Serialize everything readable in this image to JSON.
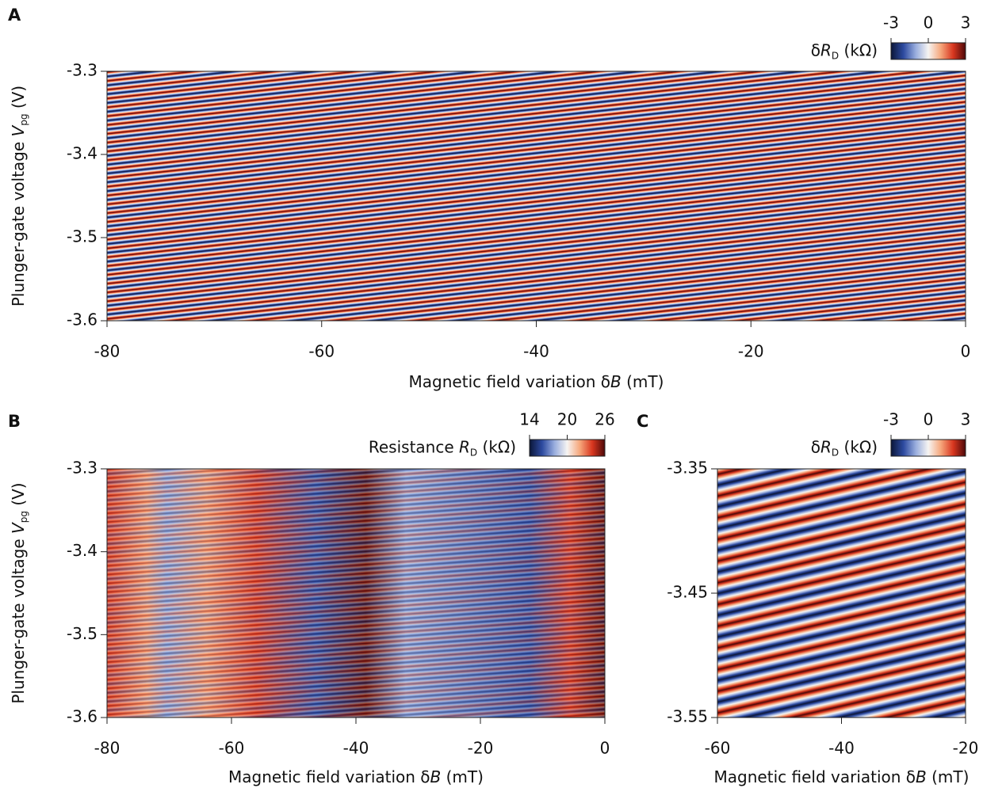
{
  "panels": [
    "A",
    "B",
    "C"
  ],
  "chart_data": [
    {
      "type": "heatmap",
      "xlabel": {
        "text": "Magnetic field variation δ",
        "italic": "B",
        "unit": " (mT)"
      },
      "ylabel": {
        "text": "Plunger-gate voltage ",
        "italic": "V",
        "sub": "pg",
        "unit": " (V)"
      },
      "xlim": [
        -80,
        0
      ],
      "xticks": [
        -80,
        -60,
        -40,
        -20,
        0
      ],
      "ylim": [
        -3.6,
        -3.3
      ],
      "yticks": [
        -3.3,
        -3.4,
        -3.5,
        -3.6
      ],
      "colorbar": {
        "label": {
          "text": "δ",
          "italic": "R",
          "sub": "D",
          "unit": " (kΩ)"
        },
        "clim": [
          -3,
          3
        ],
        "ticks": [
          -3,
          0,
          3
        ],
        "colors": [
          "#0b1638",
          "#2d4aa0",
          "#9aaede",
          "#f6f4f2",
          "#f6a77c",
          "#d8361f",
          "#4d0808"
        ]
      }
    },
    {
      "type": "heatmap",
      "xlabel": {
        "text": "Magnetic field variation δ",
        "italic": "B",
        "unit": " (mT)"
      },
      "ylabel": {
        "text": "Plunger-gate voltage ",
        "italic": "V",
        "sub": "pg",
        "unit": " (V)"
      },
      "xlim": [
        -80,
        0
      ],
      "xticks": [
        -80,
        -60,
        -40,
        -20,
        0
      ],
      "ylim": [
        -3.6,
        -3.3
      ],
      "yticks": [
        -3.3,
        -3.4,
        -3.5,
        -3.6
      ],
      "colorbar": {
        "label": {
          "text": "Resistance ",
          "italic": "R",
          "sub": "D",
          "unit": " (kΩ)"
        },
        "clim": [
          14,
          26
        ],
        "ticks": [
          14,
          20,
          26
        ],
        "colors": [
          "#0b1638",
          "#2d4aa0",
          "#9aaede",
          "#f6f4f2",
          "#f6a77c",
          "#d8361f",
          "#4d0808"
        ]
      }
    },
    {
      "type": "heatmap",
      "xlabel": {
        "text": "Magnetic field variation δ",
        "italic": "B",
        "unit": " (mT)"
      },
      "xlim": [
        -60,
        -20
      ],
      "xticks": [
        -60,
        -40,
        -20
      ],
      "ylim": [
        -3.55,
        -3.35
      ],
      "yticks": [
        -3.35,
        -3.45,
        -3.55
      ],
      "colorbar": {
        "label": {
          "text": "δ",
          "italic": "R",
          "sub": "D",
          "unit": " (kΩ)"
        },
        "clim": [
          -3,
          3
        ],
        "ticks": [
          -3,
          0,
          3
        ],
        "colors": [
          "#0b1638",
          "#2d4aa0",
          "#9aaede",
          "#f6f4f2",
          "#f6a77c",
          "#d8361f",
          "#4d0808"
        ]
      }
    }
  ]
}
